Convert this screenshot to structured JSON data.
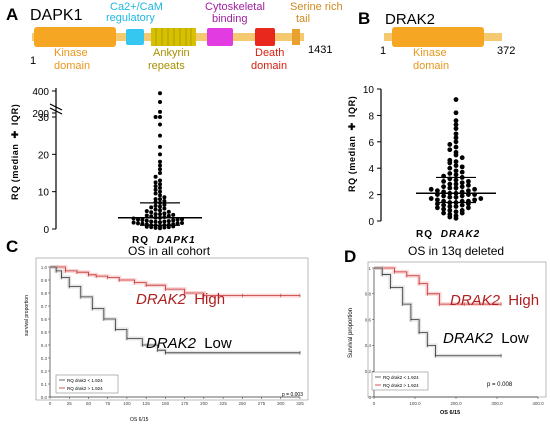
{
  "panelA": {
    "letter": "A",
    "protein": "DAPK1",
    "start": "1",
    "end": "1431",
    "domains": {
      "kinase": "Kinase domain",
      "cam": "Ca2+/CaM regulatory",
      "ankyrin": "Ankyrin repeats",
      "cyto": "Cytoskeletal binding",
      "death": "Death domain",
      "serine": "Serine rich tail"
    },
    "colors": {
      "kinase": "#f5a623",
      "cam": "#35c7f0",
      "ankyrin": "#d7c000",
      "cyto": "#e23be2",
      "death": "#e8281c",
      "serine": "#e8a030"
    }
  },
  "panelB": {
    "letter": "B",
    "protein": "DRAK2",
    "start": "1",
    "end": "372",
    "kinase": "Kinase domain"
  },
  "plotA": {
    "ylabel": "RQ (median",
    "ylabel_iqr": "IQR)",
    "xlabel_rq": "RQ",
    "xlabel_gene": "DAPK1",
    "ticks_low": [
      "0",
      "10",
      "20",
      "30"
    ],
    "ticks_high": [
      "200",
      "400"
    ]
  },
  "plotB": {
    "ylabel": "RQ (median",
    "ylabel_iqr": "IQR)",
    "xlabel_rq": "RQ",
    "xlabel_gene": "DRAK2",
    "ticks": [
      "0",
      "2",
      "4",
      "6",
      "8",
      "10"
    ]
  },
  "panelC": {
    "letter": "C",
    "title": "OS in all cohort",
    "high": "High",
    "low": "Low",
    "gene": "DRAK2",
    "ylabel": "survival proportion",
    "xlabel": "OS 6/15",
    "legend": [
      "RQ drak2 < 1.924",
      "RQ drak2 > 1.924"
    ],
    "p": "p = 0.003",
    "yticks": [
      "0.0",
      "0.1",
      "0.2",
      "0.3",
      "0.4",
      "0.5",
      "0.6",
      "0.7",
      "0.8",
      "0.9",
      "1.0"
    ],
    "xticks": [
      "0",
      "25",
      "50",
      "75",
      "100",
      "125",
      "150",
      "175",
      "200",
      "225",
      "250",
      "275",
      "300",
      "325"
    ]
  },
  "panelD": {
    "letter": "D",
    "title": "OS in 13q deleted",
    "high": "High",
    "low": "Low",
    "gene": "DRAK2",
    "ylabel": "Survival proportion",
    "xlabel": "OS 6/15",
    "legend": [
      "RQ drak2 < 1.924",
      "RQ drak2 > 1.924"
    ],
    "p": "p = 0.008",
    "yticks": [
      "0",
      "0.2",
      "0.4",
      "0.6",
      "0.8",
      "1"
    ],
    "xticks": [
      "0",
      "100.0",
      "200.0",
      "300.0",
      "400.0"
    ]
  },
  "chart_data": [
    {
      "type": "scatter",
      "title": "",
      "ylabel": "RQ (median ± IQR)",
      "xlabel": "RQ DAPK1",
      "ylim": [
        0,
        400
      ],
      "median": 3,
      "iqr": [
        1,
        7
      ],
      "values": [
        0.2,
        0.3,
        0.4,
        0.5,
        0.5,
        0.6,
        0.7,
        0.8,
        0.9,
        1.0,
        1.0,
        1.1,
        1.2,
        1.3,
        1.4,
        1.5,
        1.5,
        1.6,
        1.7,
        1.8,
        1.9,
        2.0,
        2.0,
        2.1,
        2.2,
        2.3,
        2.4,
        2.5,
        2.5,
        2.6,
        2.8,
        3.0,
        3.0,
        3.2,
        3.4,
        3.5,
        3.6,
        3.8,
        4.0,
        4.0,
        4.2,
        4.5,
        4.6,
        4.8,
        5.0,
        5.2,
        5.5,
        5.8,
        6.0,
        6.2,
        6.5,
        7.0,
        7.2,
        7.5,
        8.0,
        8.0,
        8.5,
        9.0,
        9.5,
        10.0,
        10.5,
        11.0,
        11.5,
        12.0,
        12.5,
        13.0,
        14.0,
        15.0,
        16.0,
        17.0,
        18.0,
        20.0,
        22.0,
        25.0,
        28.0,
        30.0,
        30.0,
        210,
        300,
        380
      ]
    },
    {
      "type": "scatter",
      "title": "",
      "ylabel": "RQ (median ± IQR)",
      "xlabel": "RQ DRAK2",
      "ylim": [
        0,
        10
      ],
      "median": 2.1,
      "iqr": [
        1.4,
        3.3
      ],
      "values": [
        0.2,
        0.3,
        0.4,
        0.5,
        0.6,
        0.6,
        0.7,
        0.8,
        0.8,
        0.9,
        1.0,
        1.0,
        1.1,
        1.1,
        1.2,
        1.2,
        1.3,
        1.3,
        1.4,
        1.4,
        1.5,
        1.5,
        1.5,
        1.6,
        1.6,
        1.7,
        1.7,
        1.8,
        1.8,
        1.9,
        1.9,
        2.0,
        2.0,
        2.0,
        2.1,
        2.1,
        2.2,
        2.2,
        2.3,
        2.3,
        2.4,
        2.4,
        2.5,
        2.5,
        2.6,
        2.6,
        2.7,
        2.8,
        2.8,
        2.9,
        3.0,
        3.0,
        3.1,
        3.2,
        3.3,
        3.4,
        3.5,
        3.6,
        3.7,
        3.8,
        4.0,
        4.1,
        4.2,
        4.4,
        4.5,
        4.6,
        4.8,
        5.0,
        5.2,
        5.4,
        5.6,
        5.8,
        6.0,
        6.3,
        6.6,
        7.0,
        7.3,
        7.6,
        8.2,
        9.2
      ]
    },
    {
      "type": "line",
      "title": "OS in all cohort",
      "xlabel": "OS 6/15",
      "ylabel": "survival proportion",
      "xlim": [
        0,
        325
      ],
      "ylim": [
        0,
        1
      ],
      "series": [
        {
          "name": "RQ drak2 > 1.924",
          "x": [
            0,
            10,
            20,
            35,
            50,
            60,
            75,
            90,
            110,
            125,
            150,
            175,
            200,
            250,
            300,
            325
          ],
          "y": [
            1.0,
            1.0,
            0.97,
            0.96,
            0.94,
            0.93,
            0.92,
            0.9,
            0.88,
            0.86,
            0.83,
            0.8,
            0.78,
            0.78,
            0.78,
            0.78
          ]
        },
        {
          "name": "RQ drak2 < 1.924",
          "x": [
            0,
            8,
            15,
            25,
            40,
            55,
            70,
            85,
            100,
            120,
            140,
            150,
            325
          ],
          "y": [
            1.0,
            0.97,
            0.92,
            0.85,
            0.77,
            0.68,
            0.6,
            0.52,
            0.45,
            0.4,
            0.36,
            0.34,
            0.34
          ]
        }
      ]
    },
    {
      "type": "line",
      "title": "OS in 13q deleted",
      "xlabel": "OS 6/15",
      "ylabel": "Survival proportion",
      "xlim": [
        0,
        400
      ],
      "ylim": [
        0,
        1
      ],
      "series": [
        {
          "name": "RQ drak2 > 1.924",
          "x": [
            0,
            20,
            50,
            80,
            110,
            130,
            160,
            220,
            310
          ],
          "y": [
            1.0,
            1.0,
            0.97,
            0.94,
            0.88,
            0.8,
            0.72,
            0.72,
            0.72
          ]
        },
        {
          "name": "RQ drak2 < 1.924",
          "x": [
            0,
            20,
            40,
            70,
            90,
            110,
            130,
            150,
            310
          ],
          "y": [
            1.0,
            0.95,
            0.85,
            0.72,
            0.6,
            0.5,
            0.4,
            0.32,
            0.32
          ]
        }
      ]
    }
  ]
}
